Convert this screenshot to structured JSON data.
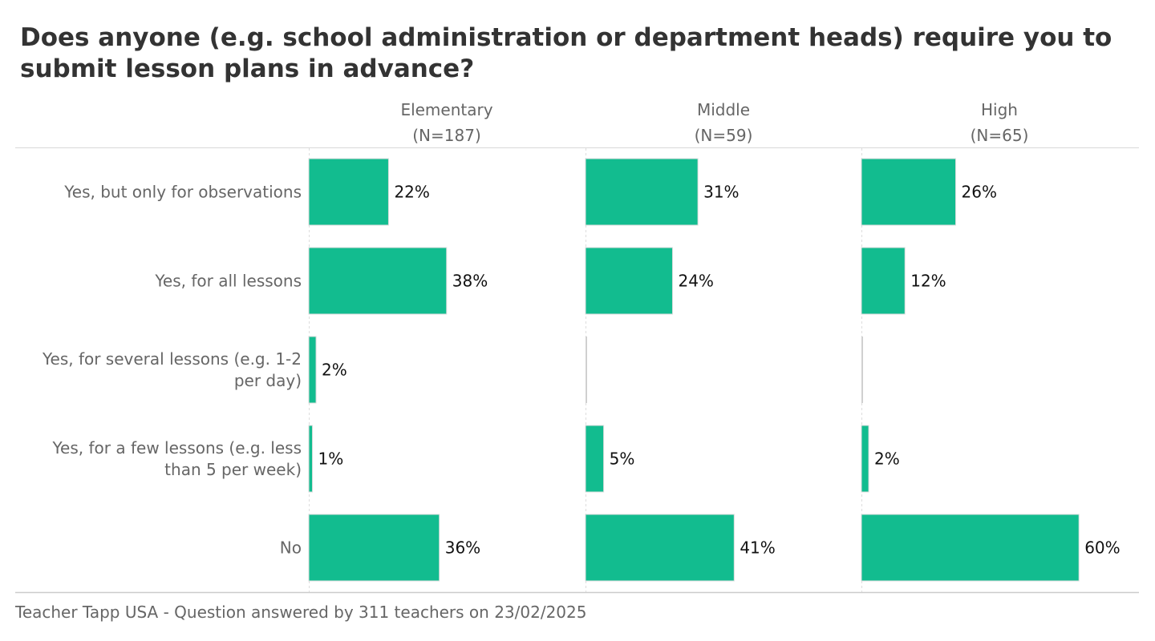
{
  "chart_data": {
    "type": "bar",
    "orientation": "horizontal",
    "title": "Does anyone (e.g. school administration or department heads) require you to submit lesson plans in advance?",
    "categories": [
      "Yes, but only for observations",
      "Yes, for all lessons",
      "Yes, for several lessons (e.g. 1-2 per day)",
      "Yes, for a few lessons (e.g. less than 5 per week)",
      "No"
    ],
    "category_label_lines": [
      [
        "Yes, but only for observations"
      ],
      [
        "Yes, for all lessons"
      ],
      [
        "Yes, for several lessons (e.g. 1-2",
        "per day)"
      ],
      [
        "Yes, for a few lessons (e.g. less",
        "than 5 per week)"
      ],
      [
        "No"
      ]
    ],
    "panels": [
      {
        "name": "Elementary",
        "n_label": "(N=187)",
        "values": [
          22,
          38,
          2,
          1,
          36
        ],
        "labels": [
          "22%",
          "38%",
          "2%",
          "1%",
          "36%"
        ]
      },
      {
        "name": "Middle",
        "n_label": "(N=59)",
        "values": [
          31,
          24,
          0,
          5,
          41
        ],
        "labels": [
          "31%",
          "24%",
          "",
          "5%",
          "41%"
        ]
      },
      {
        "name": "High",
        "n_label": "(N=65)",
        "values": [
          26,
          12,
          0,
          2,
          60
        ],
        "labels": [
          "26%",
          "12%",
          "",
          "2%",
          "60%"
        ]
      }
    ],
    "xlim": [
      0,
      100
    ],
    "unit": "%",
    "bar_color": "#12bc8f",
    "zero_bar_color": "#d0d0d0",
    "grid": false,
    "legend": "none"
  },
  "footer": "Teacher Tapp USA - Question answered by 311 teachers on 23/02/2025"
}
